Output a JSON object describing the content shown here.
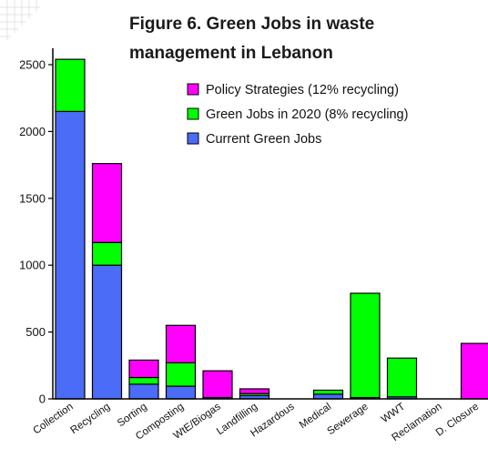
{
  "chart_data": {
    "type": "bar",
    "stacked": true,
    "title_lines": [
      "Figure 6. Green Jobs in waste",
      "management in Lebanon"
    ],
    "xlabel": "",
    "ylabel": "",
    "ylim": [
      0,
      2500
    ],
    "yticks": [
      0,
      500,
      1000,
      1500,
      2000,
      2500
    ],
    "grid": false,
    "legend_position": "top-right",
    "categories": [
      "Collection",
      "Recycling",
      "Sorting",
      "Composting",
      "WtE/Biogas",
      "Landfilling",
      "Hazardous",
      "Medical",
      "Sewerage",
      "WWT",
      "Reclamation",
      "D. Closure"
    ],
    "series": [
      {
        "name": "Current Green Jobs",
        "color": "#4a6cf7",
        "values": [
          2150,
          1000,
          110,
          95,
          10,
          25,
          0,
          35,
          10,
          15,
          0,
          0
        ]
      },
      {
        "name": "Green Jobs in 2020 (8% recycling)",
        "color": "#00ff00",
        "values": [
          390,
          170,
          50,
          175,
          0,
          15,
          0,
          30,
          780,
          290,
          0,
          0
        ]
      },
      {
        "name": "Policy Strategies (12% recycling)",
        "color": "#ff00ff",
        "values": [
          0,
          590,
          130,
          280,
          200,
          35,
          0,
          0,
          0,
          0,
          0,
          415
        ]
      }
    ],
    "legend_order": [
      "Policy Strategies (12% recycling)",
      "Green Jobs in 2020 (8% recycling)",
      "Current Green Jobs"
    ]
  }
}
